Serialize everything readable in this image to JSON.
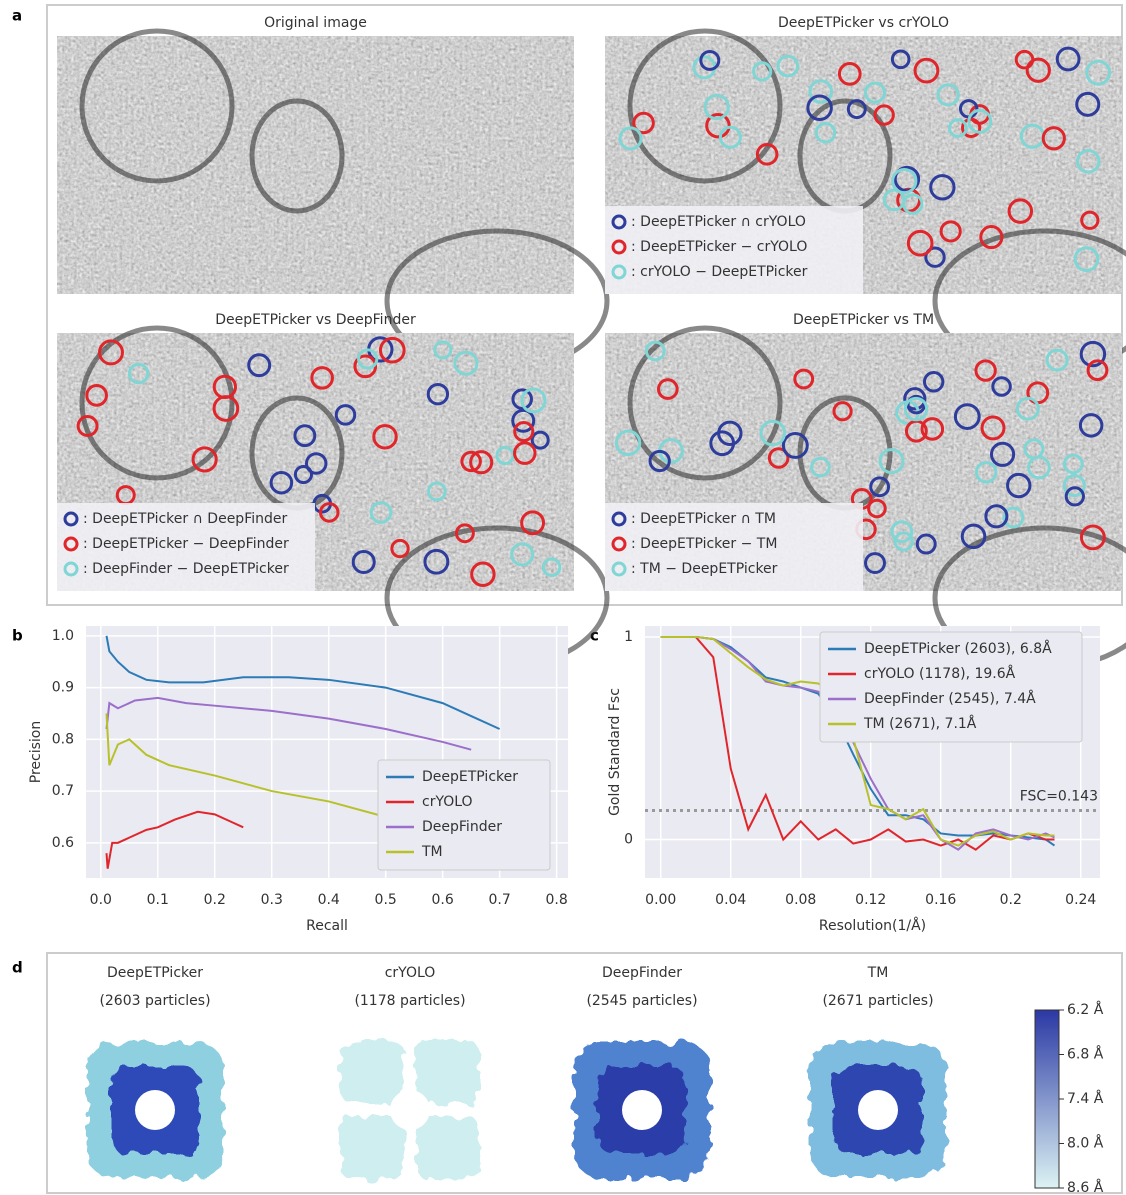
{
  "panel_labels": [
    "a",
    "b",
    "c",
    "d"
  ],
  "panel_a": {
    "images": [
      {
        "title": "Original image"
      },
      {
        "title": "DeepETPicker vs crYOLO",
        "legend": [
          {
            "label": ": DeepETPicker ∩ crYOLO",
            "color": "#2e3c9c"
          },
          {
            "label": ": DeepETPicker − crYOLO",
            "color": "#e0262b"
          },
          {
            "label": ": crYOLO − DeepETPicker",
            "color": "#7fd6d4"
          }
        ]
      },
      {
        "title": "DeepETPicker vs DeepFinder",
        "legend": [
          {
            "label": ": DeepETPicker ∩ DeepFinder",
            "color": "#2e3c9c"
          },
          {
            "label": ": DeepETPicker − DeepFinder",
            "color": "#e0262b"
          },
          {
            "label": ": DeepFinder − DeepETPicker",
            "color": "#7fd6d4"
          }
        ]
      },
      {
        "title": "DeepETPicker vs TM",
        "legend": [
          {
            "label": ": DeepETPicker ∩ TM",
            "color": "#2e3c9c"
          },
          {
            "label": ": DeepETPicker − TM",
            "color": "#e0262b"
          },
          {
            "label": ": TM − DeepETPicker",
            "color": "#7fd6d4"
          }
        ]
      }
    ]
  },
  "chart_data": [
    {
      "type": "line",
      "xlabel": "Recall",
      "ylabel": "Precision",
      "xlim": [
        -0.026,
        0.82
      ],
      "ylim": [
        0.532,
        1.019
      ],
      "xticks": [
        {
          "value": 0,
          "label": "0.0"
        },
        0.1,
        0.2,
        0.3,
        0.4,
        0.5,
        0.6,
        0.7,
        0.8
      ],
      "yticks": [
        0.6,
        0.7,
        0.8,
        0.9,
        {
          "value": 1,
          "label": "1.0"
        }
      ],
      "grid": true,
      "legend": "lower right",
      "series": [
        {
          "name": "DeepETPicker",
          "color": "#2c7bb6",
          "x": [
            0.01,
            0.015,
            0.03,
            0.05,
            0.08,
            0.12,
            0.18,
            0.25,
            0.33,
            0.4,
            0.5,
            0.6,
            0.65,
            0.7
          ],
          "values": [
            1.0,
            0.97,
            0.95,
            0.93,
            0.915,
            0.91,
            0.91,
            0.92,
            0.92,
            0.915,
            0.9,
            0.87,
            0.845,
            0.82
          ]
        },
        {
          "name": "crYOLO",
          "color": "#e0262b",
          "x": [
            0.01,
            0.012,
            0.02,
            0.03,
            0.05,
            0.08,
            0.1,
            0.13,
            0.17,
            0.2,
            0.23,
            0.25
          ],
          "values": [
            0.58,
            0.55,
            0.6,
            0.6,
            0.61,
            0.625,
            0.63,
            0.645,
            0.66,
            0.655,
            0.64,
            0.63
          ]
        },
        {
          "name": "DeepFinder",
          "color": "#9b6fca",
          "x": [
            0.01,
            0.015,
            0.03,
            0.06,
            0.1,
            0.15,
            0.2,
            0.3,
            0.4,
            0.5,
            0.6,
            0.65
          ],
          "values": [
            0.82,
            0.87,
            0.86,
            0.875,
            0.88,
            0.87,
            0.865,
            0.855,
            0.84,
            0.82,
            0.795,
            0.78
          ]
        },
        {
          "name": "TM",
          "color": "#b8c12a",
          "x": [
            0.01,
            0.015,
            0.03,
            0.05,
            0.08,
            0.12,
            0.2,
            0.3,
            0.4,
            0.5,
            0.55,
            0.6
          ],
          "values": [
            0.85,
            0.75,
            0.79,
            0.8,
            0.77,
            0.75,
            0.73,
            0.7,
            0.68,
            0.65,
            0.63,
            0.61
          ]
        }
      ]
    },
    {
      "type": "line",
      "xlabel": "Resolution(1/Å)",
      "ylabel": "Gold Standard Fsc",
      "xlim": [
        -0.009,
        0.251
      ],
      "ylim": [
        -0.19,
        1.054
      ],
      "xticks": [
        {
          "value": 0,
          "label": "0.00"
        },
        0.04,
        0.08,
        0.12,
        0.16,
        0.2,
        0.24
      ],
      "yticks": [
        0,
        1
      ],
      "grid": true,
      "legend": "upper right",
      "hline": {
        "value": 0.143,
        "label": "FSC=0.143"
      },
      "x": [
        0,
        0.02,
        0.03,
        0.04,
        0.05,
        0.06,
        0.07,
        0.08,
        0.09,
        0.1,
        0.11,
        0.12,
        0.13,
        0.14,
        0.15,
        0.16,
        0.17,
        0.18,
        0.19,
        0.2,
        0.21,
        0.22,
        0.225
      ],
      "series": [
        {
          "name": "DeepETPicker (2603), 6.8Å",
          "color": "#2c7bb6",
          "values": [
            1,
            1,
            0.99,
            0.95,
            0.88,
            0.8,
            0.78,
            0.75,
            0.72,
            0.6,
            0.42,
            0.25,
            0.12,
            0.12,
            0.1,
            0.03,
            0.02,
            0.02,
            0.03,
            0.02,
            0.01,
            0,
            -0.03
          ]
        },
        {
          "name": "crYOLO (1178), 19.6Å",
          "color": "#e0262b",
          "values": [
            1,
            1,
            0.9,
            0.35,
            0.05,
            0.22,
            0,
            0.09,
            0,
            0.05,
            -0.02,
            0,
            0.05,
            -0.01,
            0,
            -0.03,
            0,
            -0.05,
            0.02,
            0,
            0.03,
            0,
            0
          ]
        },
        {
          "name": "DeepFinder (2545), 7.4Å",
          "color": "#9b6fca",
          "values": [
            1,
            1,
            0.99,
            0.94,
            0.88,
            0.78,
            0.76,
            0.75,
            0.73,
            0.66,
            0.48,
            0.3,
            0.15,
            0.1,
            0.12,
            0,
            -0.05,
            0.03,
            0.05,
            0.02,
            0,
            0.03,
            0.01
          ]
        },
        {
          "name": "TM (2671), 7.1Å",
          "color": "#b8c12a",
          "values": [
            1,
            1,
            0.99,
            0.92,
            0.85,
            0.79,
            0.76,
            0.78,
            0.77,
            0.72,
            0.5,
            0.17,
            0.15,
            0.1,
            0.15,
            0,
            -0.03,
            0.02,
            0.04,
            0,
            0.03,
            0.02,
            0.02
          ]
        }
      ]
    }
  ],
  "panel_d": {
    "structures": [
      {
        "name": "DeepETPicker",
        "particles": "(2603 particles)"
      },
      {
        "name": "crYOLO",
        "particles": "(1178 particles)"
      },
      {
        "name": "DeepFinder",
        "particles": "(2545 particles)"
      },
      {
        "name": "TM",
        "particles": "(2671 particles)"
      }
    ],
    "colorbar": {
      "lim": [
        6.2,
        8.6
      ],
      "colors": [
        "#2b38a4",
        "#dcf3f3"
      ],
      "ticks": [
        {
          "value": 6.2,
          "label": "6.2 Å"
        },
        {
          "value": 6.8,
          "label": "6.8 Å"
        },
        {
          "value": 7.4,
          "label": "7.4 Å"
        },
        {
          "value": 8.0,
          "label": "8.0 Å"
        },
        {
          "value": 8.6,
          "label": "8.6 Å"
        }
      ]
    }
  }
}
